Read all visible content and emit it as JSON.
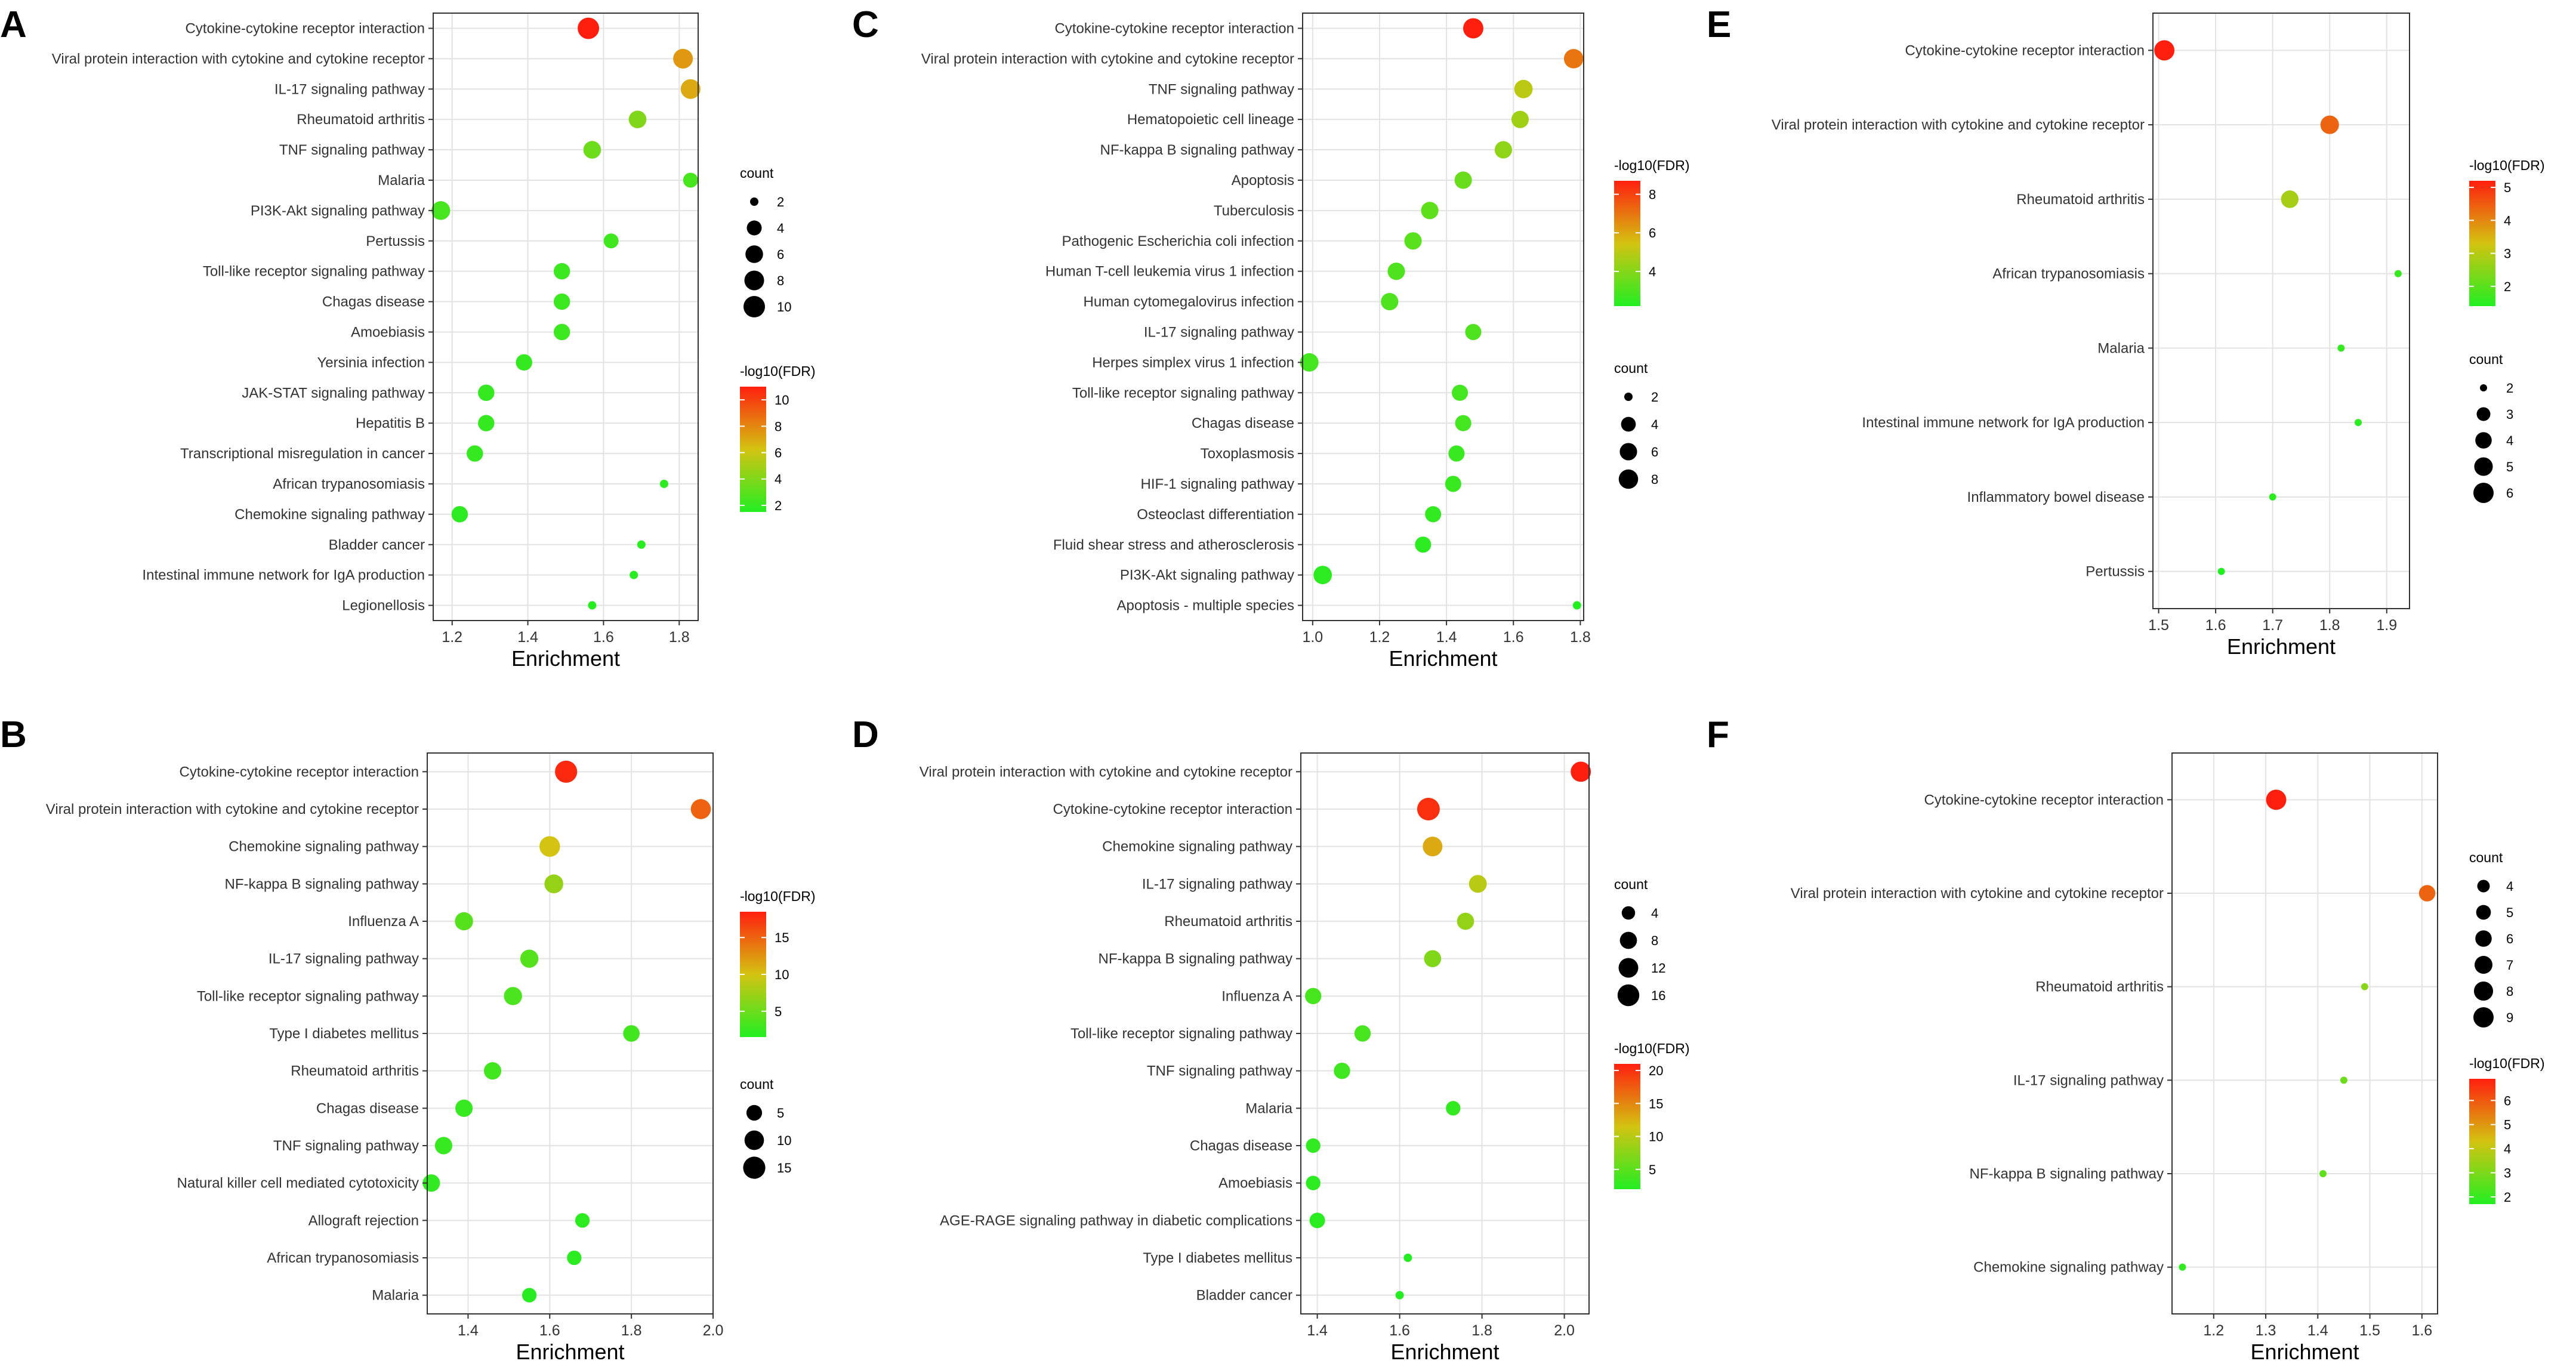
{
  "figure": {
    "colors": {
      "grid": "#e3e3e3",
      "frame": "#333333",
      "point_low": "#22ee22",
      "point_mid": "#d4c311",
      "point_high": "#ff1f0f"
    }
  },
  "chart_data": [
    {
      "panel": "A",
      "type": "scatter",
      "xlabel": "Enrichment",
      "xlim": [
        1.15,
        1.85
      ],
      "xticks": [
        1.2,
        1.4,
        1.6,
        1.8
      ],
      "xtick_labels": [
        "1.2",
        "1.4",
        "1.6",
        "1.8"
      ],
      "count_legend": {
        "title": "count",
        "values": [
          2,
          4,
          6,
          8,
          10
        ],
        "labels": [
          "2",
          "4",
          "6",
          "8",
          "10"
        ],
        "min": 2,
        "max": 10
      },
      "color_legend": {
        "title": "-log10(FDR)",
        "ticks": [
          2,
          4,
          6,
          8,
          10
        ],
        "labels": [
          "2",
          "4",
          "6",
          "8",
          "10"
        ],
        "min": 1.5,
        "max": 11
      },
      "points": [
        {
          "term": "Cytokine-cytokine receptor interaction",
          "x": 1.56,
          "count": 10,
          "fdr": 11
        },
        {
          "term": "Viral protein interaction with cytokine and cytokine receptor",
          "x": 1.81,
          "count": 8,
          "fdr": 7.5
        },
        {
          "term": "IL-17 signaling pathway",
          "x": 1.83,
          "count": 8,
          "fdr": 7
        },
        {
          "term": "Rheumatoid arthritis",
          "x": 1.69,
          "count": 6,
          "fdr": 4
        },
        {
          "term": "TNF signaling pathway",
          "x": 1.57,
          "count": 6,
          "fdr": 3.5
        },
        {
          "term": "Malaria",
          "x": 1.83,
          "count": 4,
          "fdr": 2.5
        },
        {
          "term": "PI3K-Akt signaling pathway",
          "x": 1.17,
          "count": 7,
          "fdr": 2.5
        },
        {
          "term": "Pertussis",
          "x": 1.62,
          "count": 4,
          "fdr": 2.3
        },
        {
          "term": "Toll-like receptor signaling pathway",
          "x": 1.49,
          "count": 5,
          "fdr": 2.2
        },
        {
          "term": "Chagas disease",
          "x": 1.49,
          "count": 5,
          "fdr": 2.2
        },
        {
          "term": "Amoebiasis",
          "x": 1.49,
          "count": 5,
          "fdr": 2.2
        },
        {
          "term": "Yersinia infection",
          "x": 1.39,
          "count": 5,
          "fdr": 2
        },
        {
          "term": "JAK-STAT signaling pathway",
          "x": 1.29,
          "count": 5,
          "fdr": 2
        },
        {
          "term": "Hepatitis B",
          "x": 1.29,
          "count": 5,
          "fdr": 2
        },
        {
          "term": "Transcriptional misregulation in cancer",
          "x": 1.26,
          "count": 5,
          "fdr": 2
        },
        {
          "term": "African trypanosomiasis",
          "x": 1.76,
          "count": 2,
          "fdr": 1.8
        },
        {
          "term": "Chemokine signaling pathway",
          "x": 1.22,
          "count": 5,
          "fdr": 1.8
        },
        {
          "term": "Bladder cancer",
          "x": 1.7,
          "count": 2,
          "fdr": 1.7
        },
        {
          "term": "Intestinal immune network for IgA production",
          "x": 1.68,
          "count": 2,
          "fdr": 1.7
        },
        {
          "term": "Legionellosis",
          "x": 1.57,
          "count": 2,
          "fdr": 1.6
        }
      ]
    },
    {
      "panel": "B",
      "type": "scatter",
      "xlabel": "Enrichment",
      "xlim": [
        1.3,
        2.0
      ],
      "xticks": [
        1.4,
        1.6,
        1.8,
        2.0
      ],
      "xtick_labels": [
        "1.4",
        "1.6",
        "1.8",
        "2.0"
      ],
      "count_legend": {
        "title": "count",
        "values": [
          5,
          10,
          15
        ],
        "labels": [
          "5",
          "10",
          "15"
        ],
        "min": 2,
        "max": 16
      },
      "color_legend": {
        "title": "-log10(FDR)",
        "ticks": [
          5,
          10,
          15
        ],
        "labels": [
          "5",
          "10",
          "15"
        ],
        "min": 1.5,
        "max": 18.5
      },
      "points": [
        {
          "term": "Cytokine-cytokine receptor interaction",
          "x": 1.64,
          "count": 15,
          "fdr": 18
        },
        {
          "term": "Viral protein interaction with cytokine and cytokine receptor",
          "x": 1.97,
          "count": 11,
          "fdr": 15
        },
        {
          "term": "Chemokine signaling pathway",
          "x": 1.6,
          "count": 12,
          "fdr": 10
        },
        {
          "term": "NF-kappa B signaling pathway",
          "x": 1.61,
          "count": 9,
          "fdr": 7
        },
        {
          "term": "Influenza A",
          "x": 1.39,
          "count": 8,
          "fdr": 4
        },
        {
          "term": "IL-17 signaling pathway",
          "x": 1.55,
          "count": 8,
          "fdr": 4
        },
        {
          "term": "Toll-like receptor signaling pathway",
          "x": 1.51,
          "count": 8,
          "fdr": 3.5
        },
        {
          "term": "Type I diabetes mellitus",
          "x": 1.8,
          "count": 6,
          "fdr": 3
        },
        {
          "term": "Rheumatoid arthritis",
          "x": 1.46,
          "count": 7,
          "fdr": 3
        },
        {
          "term": "Chagas disease",
          "x": 1.39,
          "count": 7,
          "fdr": 2.5
        },
        {
          "term": "TNF signaling pathway",
          "x": 1.34,
          "count": 7,
          "fdr": 2.5
        },
        {
          "term": "Natural killer cell mediated cytotoxicity",
          "x": 1.31,
          "count": 7,
          "fdr": 2.2
        },
        {
          "term": "Allograft rejection",
          "x": 1.68,
          "count": 4,
          "fdr": 2
        },
        {
          "term": "African trypanosomiasis",
          "x": 1.66,
          "count": 4,
          "fdr": 2
        },
        {
          "term": "Malaria",
          "x": 1.55,
          "count": 4,
          "fdr": 1.8
        }
      ]
    },
    {
      "panel": "C",
      "type": "scatter",
      "xlabel": "Enrichment",
      "xlim": [
        0.97,
        1.81
      ],
      "xticks": [
        1.0,
        1.2,
        1.4,
        1.6,
        1.8
      ],
      "xtick_labels": [
        "1.0",
        "1.2",
        "1.4",
        "1.6",
        "1.8"
      ],
      "count_legend": {
        "title": "count",
        "values": [
          2,
          4,
          6,
          8
        ],
        "labels": [
          "2",
          "4",
          "6",
          "8"
        ],
        "min": 2,
        "max": 9
      },
      "color_legend": {
        "title": "-log10(FDR)",
        "ticks": [
          4,
          6,
          8
        ],
        "labels": [
          "4",
          "6",
          "8"
        ],
        "min": 2.2,
        "max": 8.7
      },
      "points": [
        {
          "term": "Cytokine-cytokine receptor interaction",
          "x": 1.48,
          "count": 9,
          "fdr": 8.7
        },
        {
          "term": "Viral protein interaction with cytokine and cytokine receptor",
          "x": 1.78,
          "count": 8,
          "fdr": 7
        },
        {
          "term": "TNF signaling pathway",
          "x": 1.63,
          "count": 7,
          "fdr": 5
        },
        {
          "term": "Hematopoietic cell lineage",
          "x": 1.62,
          "count": 6,
          "fdr": 4.5
        },
        {
          "term": "NF-kappa B signaling pathway",
          "x": 1.57,
          "count": 6,
          "fdr": 4.2
        },
        {
          "term": "Apoptosis",
          "x": 1.45,
          "count": 6,
          "fdr": 3.5
        },
        {
          "term": "Tuberculosis",
          "x": 1.35,
          "count": 6,
          "fdr": 3.3
        },
        {
          "term": "Pathogenic Escherichia coli infection",
          "x": 1.3,
          "count": 6,
          "fdr": 3.2
        },
        {
          "term": "Human T-cell leukemia virus 1 infection",
          "x": 1.25,
          "count": 6,
          "fdr": 3
        },
        {
          "term": "Human cytomegalovirus infection",
          "x": 1.23,
          "count": 6,
          "fdr": 3
        },
        {
          "term": "IL-17 signaling pathway",
          "x": 1.48,
          "count": 5,
          "fdr": 3
        },
        {
          "term": "Herpes simplex virus 1 infection",
          "x": 0.99,
          "count": 7,
          "fdr": 2.8
        },
        {
          "term": "Toll-like receptor signaling pathway",
          "x": 1.44,
          "count": 5,
          "fdr": 2.8
        },
        {
          "term": "Chagas disease",
          "x": 1.45,
          "count": 5,
          "fdr": 2.8
        },
        {
          "term": "Toxoplasmosis",
          "x": 1.43,
          "count": 5,
          "fdr": 2.6
        },
        {
          "term": "HIF-1 signaling pathway",
          "x": 1.42,
          "count": 5,
          "fdr": 2.6
        },
        {
          "term": "Osteoclast differentiation",
          "x": 1.36,
          "count": 5,
          "fdr": 2.5
        },
        {
          "term": "Fluid shear stress and atherosclerosis",
          "x": 1.33,
          "count": 5,
          "fdr": 2.4
        },
        {
          "term": "PI3K-Akt signaling pathway",
          "x": 1.03,
          "count": 7,
          "fdr": 2.4
        },
        {
          "term": "Apoptosis - multiple species",
          "x": 1.79,
          "count": 2,
          "fdr": 2.2
        }
      ]
    },
    {
      "panel": "D",
      "type": "scatter",
      "xlabel": "Enrichment",
      "xlim": [
        1.36,
        2.06
      ],
      "xticks": [
        1.4,
        1.6,
        1.8,
        2.0
      ],
      "xtick_labels": [
        "1.4",
        "1.6",
        "1.8",
        "2.0"
      ],
      "count_legend": {
        "title": "count",
        "values": [
          4,
          8,
          12,
          16
        ],
        "labels": [
          "4",
          "8",
          "12",
          "16"
        ],
        "min": 2,
        "max": 18
      },
      "color_legend": {
        "title": "-log10(FDR)",
        "ticks": [
          5,
          10,
          15,
          20
        ],
        "labels": [
          "5",
          "10",
          "15",
          "20"
        ],
        "min": 2,
        "max": 21
      },
      "points": [
        {
          "term": "Viral protein interaction with cytokine and cytokine receptor",
          "x": 2.04,
          "count": 13,
          "fdr": 21
        },
        {
          "term": "Cytokine-cytokine receptor interaction",
          "x": 1.67,
          "count": 18,
          "fdr": 20
        },
        {
          "term": "Chemokine signaling pathway",
          "x": 1.68,
          "count": 12,
          "fdr": 13
        },
        {
          "term": "IL-17 signaling pathway",
          "x": 1.79,
          "count": 9,
          "fdr": 10
        },
        {
          "term": "Rheumatoid arthritis",
          "x": 1.76,
          "count": 8,
          "fdr": 8
        },
        {
          "term": "NF-kappa B signaling pathway",
          "x": 1.68,
          "count": 8,
          "fdr": 7
        },
        {
          "term": "Influenza A",
          "x": 1.39,
          "count": 7,
          "fdr": 4
        },
        {
          "term": "Toll-like receptor signaling pathway",
          "x": 1.51,
          "count": 7,
          "fdr": 4
        },
        {
          "term": "TNF signaling pathway",
          "x": 1.46,
          "count": 7,
          "fdr": 3.5
        },
        {
          "term": "Malaria",
          "x": 1.73,
          "count": 5,
          "fdr": 3
        },
        {
          "term": "Chagas disease",
          "x": 1.39,
          "count": 5,
          "fdr": 2.8
        },
        {
          "term": "Amoebiasis",
          "x": 1.39,
          "count": 5,
          "fdr": 2.6
        },
        {
          "term": "AGE-RAGE signaling pathway in diabetic complications",
          "x": 1.4,
          "count": 6,
          "fdr": 2.5
        },
        {
          "term": "Type I diabetes mellitus",
          "x": 1.62,
          "count": 2,
          "fdr": 2.2
        },
        {
          "term": "Bladder cancer",
          "x": 1.6,
          "count": 2,
          "fdr": 2.1
        }
      ]
    },
    {
      "panel": "E",
      "type": "scatter",
      "xlabel": "Enrichment",
      "xlim": [
        1.49,
        1.94
      ],
      "xticks": [
        1.5,
        1.6,
        1.7,
        1.8,
        1.9
      ],
      "xtick_labels": [
        "1.5",
        "1.6",
        "1.7",
        "1.8",
        "1.9"
      ],
      "count_legend": {
        "title": "count",
        "values": [
          2,
          3,
          4,
          5,
          6
        ],
        "labels": [
          "2",
          "3",
          "4",
          "5",
          "6"
        ],
        "min": 2,
        "max": 6
      },
      "color_legend": {
        "title": "-log10(FDR)",
        "ticks": [
          2,
          3,
          4,
          5
        ],
        "labels": [
          "2",
          "3",
          "4",
          "5"
        ],
        "min": 1.4,
        "max": 5.2
      },
      "points": [
        {
          "term": "Cytokine-cytokine receptor interaction",
          "x": 1.51,
          "count": 6,
          "fdr": 5.2
        },
        {
          "term": "Viral protein interaction with cytokine and cytokine receptor",
          "x": 1.8,
          "count": 5,
          "fdr": 4.4
        },
        {
          "term": "Rheumatoid arthritis",
          "x": 1.73,
          "count": 4.5,
          "fdr": 2.8
        },
        {
          "term": "African trypanosomiasis",
          "x": 1.92,
          "count": 2,
          "fdr": 1.6
        },
        {
          "term": "Malaria",
          "x": 1.82,
          "count": 2,
          "fdr": 1.6
        },
        {
          "term": "Intestinal immune network for IgA production",
          "x": 1.85,
          "count": 2,
          "fdr": 1.5
        },
        {
          "term": "Inflammatory bowel disease",
          "x": 1.7,
          "count": 2,
          "fdr": 1.5
        },
        {
          "term": "Pertussis",
          "x": 1.61,
          "count": 2,
          "fdr": 1.4
        }
      ]
    },
    {
      "panel": "F",
      "type": "scatter",
      "xlabel": "Enrichment",
      "xlim": [
        1.12,
        1.63
      ],
      "xticks": [
        1.2,
        1.3,
        1.4,
        1.5,
        1.6
      ],
      "xtick_labels": [
        "1.2",
        "1.3",
        "1.4",
        "1.5",
        "1.6"
      ],
      "count_legend": {
        "title": "count",
        "values": [
          4,
          5,
          6,
          7,
          8,
          9
        ],
        "labels": [
          "4",
          "5",
          "6",
          "7",
          "8",
          "9"
        ],
        "min": 3,
        "max": 9
      },
      "color_legend": {
        "title": "-log10(FDR)",
        "ticks": [
          2,
          3,
          4,
          5,
          6
        ],
        "labels": [
          "2",
          "3",
          "4",
          "5",
          "6"
        ],
        "min": 1.7,
        "max": 6.9
      },
      "points": [
        {
          "term": "Cytokine-cytokine receptor interaction",
          "x": 1.32,
          "count": 9,
          "fdr": 6.9
        },
        {
          "term": "Viral protein interaction with cytokine and cytokine receptor",
          "x": 1.61,
          "count": 6,
          "fdr": 5.8
        },
        {
          "term": "Rheumatoid arthritis",
          "x": 1.49,
          "count": 3,
          "fdr": 3.2
        },
        {
          "term": "IL-17 signaling pathway",
          "x": 1.45,
          "count": 3,
          "fdr": 2.8
        },
        {
          "term": "NF-kappa B signaling pathway",
          "x": 1.41,
          "count": 3,
          "fdr": 2.6
        },
        {
          "term": "Chemokine signaling pathway",
          "x": 1.14,
          "count": 3,
          "fdr": 1.9
        }
      ]
    }
  ]
}
